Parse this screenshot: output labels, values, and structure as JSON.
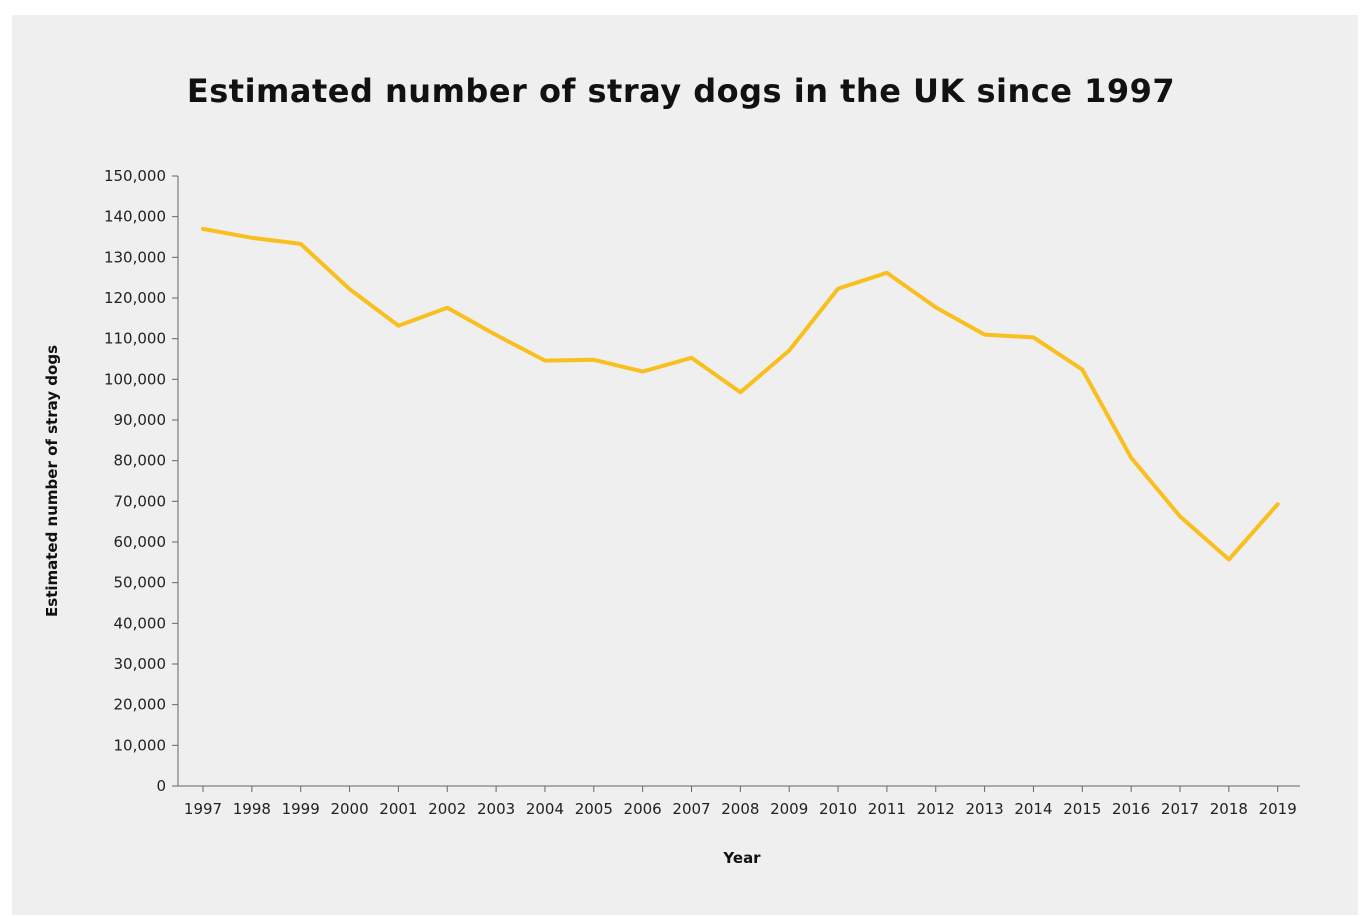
{
  "chart_data": {
    "type": "line",
    "title": "Estimated number of stray dogs in the UK since 1997",
    "xlabel": "Year",
    "ylabel": "Estimated number of stray dogs",
    "ylim": [
      0,
      150000
    ],
    "y_ticks": [
      0,
      10000,
      20000,
      30000,
      40000,
      50000,
      60000,
      70000,
      80000,
      90000,
      100000,
      110000,
      120000,
      130000,
      140000,
      150000
    ],
    "y_tick_labels": [
      "0",
      "10,000",
      "20,000",
      "30,000",
      "40,000",
      "50,000",
      "60,000",
      "70,000",
      "80,000",
      "90,000",
      "100,000",
      "110,000",
      "120,000",
      "130,000",
      "140,000",
      "150,000"
    ],
    "x": [
      "1997",
      "1998",
      "1999",
      "2000",
      "2001",
      "2002",
      "2003",
      "2004",
      "2005",
      "2006",
      "2007",
      "2008",
      "2009",
      "2010",
      "2011",
      "2012",
      "2013",
      "2014",
      "2015",
      "2016",
      "2017",
      "2018",
      "2019"
    ],
    "series": [
      {
        "color": "#f9bf1e",
        "values": [
          137000,
          134800,
          133300,
          122200,
          113200,
          117600,
          110900,
          104600,
          104800,
          101900,
          105300,
          96800,
          107100,
          122300,
          126200,
          117700,
          111000,
          110300,
          102400,
          80700,
          66300,
          55700,
          69300
        ]
      }
    ],
    "grid": false,
    "legend": "none"
  }
}
